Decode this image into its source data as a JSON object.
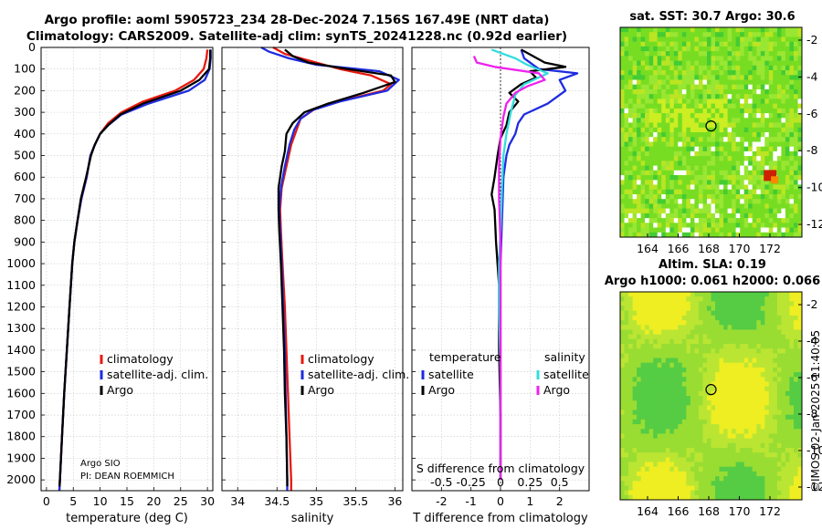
{
  "header": {
    "title_line1": "Argo profile: aoml 5905723_234 28-Dec-2024 7.156S 167.49E (NRT data)",
    "title_line2": "Climatology: CARS2009. Satellite-adj clim: synTS_20241228.nc (0.92d earlier)"
  },
  "colors": {
    "climatology": "#e8180f",
    "satellite_adj": "#1f2be0",
    "argo": "#000000",
    "salinity_satellite": "#33dddd",
    "salinity_argo": "#ee22ee"
  },
  "chart_data": [
    {
      "type": "line",
      "panel": "temperature",
      "xlabel": "temperature (deg C)",
      "ylabel": "",
      "xlim": [
        -1,
        31
      ],
      "ylim": [
        2050,
        0
      ],
      "xticks": [
        0,
        5,
        10,
        15,
        20,
        25,
        30
      ],
      "yticks": [
        0,
        100,
        200,
        300,
        400,
        500,
        600,
        700,
        800,
        900,
        1000,
        1100,
        1200,
        1300,
        1400,
        1500,
        1600,
        1700,
        1800,
        1900,
        2000
      ],
      "legend": [
        "climatology",
        "satellite-adj. clim.",
        "Argo"
      ],
      "legend_position": "lower-right",
      "annotations": [
        "Argo SIO",
        "PI: DEAN ROEMMICH"
      ],
      "series": [
        {
          "name": "climatology",
          "points": [
            [
              30,
              10
            ],
            [
              29.8,
              50
            ],
            [
              29.3,
              100
            ],
            [
              27.5,
              150
            ],
            [
              24,
              200
            ],
            [
              18,
              250
            ],
            [
              14,
              300
            ],
            [
              11.5,
              350
            ],
            [
              10,
              400
            ],
            [
              9,
              450
            ],
            [
              8.2,
              500
            ],
            [
              7.5,
              600
            ],
            [
              6.5,
              700
            ],
            [
              5.8,
              800
            ],
            [
              5.2,
              900
            ],
            [
              4.8,
              1000
            ],
            [
              4.3,
              1200
            ],
            [
              3.8,
              1400
            ],
            [
              3.3,
              1600
            ],
            [
              2.9,
              1800
            ],
            [
              2.5,
              2000
            ],
            [
              2.4,
              2050
            ]
          ]
        },
        {
          "name": "satellite-adj. clim.",
          "points": [
            [
              30.6,
              10
            ],
            [
              30.6,
              50
            ],
            [
              30.4,
              100
            ],
            [
              29.5,
              150
            ],
            [
              26.5,
              200
            ],
            [
              19,
              260
            ],
            [
              14,
              310
            ],
            [
              11.5,
              360
            ],
            [
              10,
              400
            ],
            [
              9,
              450
            ],
            [
              8.2,
              500
            ],
            [
              7.5,
              600
            ],
            [
              6.5,
              700
            ],
            [
              5.8,
              800
            ],
            [
              5.2,
              900
            ],
            [
              4.8,
              1000
            ],
            [
              4.3,
              1200
            ],
            [
              3.8,
              1400
            ],
            [
              3.3,
              1600
            ],
            [
              2.9,
              1800
            ],
            [
              2.5,
              2000
            ],
            [
              2.4,
              2050
            ]
          ]
        },
        {
          "name": "Argo",
          "points": [
            [
              30.5,
              10
            ],
            [
              30.5,
              50
            ],
            [
              30.3,
              100
            ],
            [
              28.5,
              150
            ],
            [
              25,
              200
            ],
            [
              18,
              260
            ],
            [
              13.8,
              310
            ],
            [
              11.5,
              360
            ],
            [
              10,
              400
            ],
            [
              9,
              450
            ],
            [
              8.3,
              500
            ],
            [
              7.4,
              600
            ],
            [
              6.4,
              700
            ],
            [
              5.8,
              800
            ],
            [
              5.2,
              900
            ],
            [
              4.8,
              1000
            ],
            [
              4.3,
              1200
            ],
            [
              3.8,
              1400
            ],
            [
              3.3,
              1600
            ],
            [
              2.9,
              1800
            ],
            [
              2.5,
              2000
            ],
            [
              2.45,
              2030
            ]
          ]
        }
      ]
    },
    {
      "type": "line",
      "panel": "salinity",
      "xlabel": "salinity",
      "ylabel": "",
      "xlim": [
        33.8,
        36.1
      ],
      "ylim": [
        2050,
        0
      ],
      "xticks": [
        34,
        34.5,
        35,
        35.5,
        36
      ],
      "legend": [
        "climatology",
        "satellite-adj. clim.",
        "Argo"
      ],
      "legend_position": "lower-right",
      "series": [
        {
          "name": "climatology",
          "points": [
            [
              34.45,
              0
            ],
            [
              34.6,
              30
            ],
            [
              34.9,
              60
            ],
            [
              35.3,
              100
            ],
            [
              35.7,
              130
            ],
            [
              35.95,
              170
            ],
            [
              35.85,
              200
            ],
            [
              35.4,
              240
            ],
            [
              35.0,
              280
            ],
            [
              34.8,
              330
            ],
            [
              34.75,
              380
            ],
            [
              34.68,
              450
            ],
            [
              34.62,
              550
            ],
            [
              34.56,
              650
            ],
            [
              34.54,
              750
            ],
            [
              34.55,
              850
            ],
            [
              34.57,
              1000
            ],
            [
              34.6,
              1200
            ],
            [
              34.62,
              1400
            ],
            [
              34.64,
              1600
            ],
            [
              34.66,
              1800
            ],
            [
              34.68,
              2000
            ],
            [
              34.68,
              2050
            ]
          ]
        },
        {
          "name": "satellite-adj. clim.",
          "points": [
            [
              34.3,
              0
            ],
            [
              34.4,
              20
            ],
            [
              34.65,
              50
            ],
            [
              35.0,
              80
            ],
            [
              35.8,
              110
            ],
            [
              36.05,
              150
            ],
            [
              35.9,
              200
            ],
            [
              35.3,
              250
            ],
            [
              34.95,
              290
            ],
            [
              34.8,
              330
            ],
            [
              34.72,
              380
            ],
            [
              34.66,
              450
            ],
            [
              34.6,
              550
            ],
            [
              34.55,
              650
            ],
            [
              34.53,
              750
            ],
            [
              34.54,
              850
            ],
            [
              34.56,
              1000
            ],
            [
              34.58,
              1200
            ],
            [
              34.6,
              1400
            ],
            [
              34.61,
              1600
            ],
            [
              34.62,
              1800
            ],
            [
              34.63,
              2000
            ],
            [
              34.63,
              2050
            ]
          ]
        },
        {
          "name": "Argo",
          "points": [
            [
              34.6,
              10
            ],
            [
              34.7,
              40
            ],
            [
              34.9,
              70
            ],
            [
              35.4,
              100
            ],
            [
              35.95,
              130
            ],
            [
              36.0,
              160
            ],
            [
              35.6,
              210
            ],
            [
              35.15,
              260
            ],
            [
              34.85,
              300
            ],
            [
              34.7,
              350
            ],
            [
              34.62,
              400
            ],
            [
              34.6,
              480
            ],
            [
              34.56,
              550
            ],
            [
              34.52,
              650
            ],
            [
              34.52,
              750
            ],
            [
              34.53,
              850
            ],
            [
              34.55,
              1000
            ],
            [
              34.57,
              1200
            ],
            [
              34.59,
              1400
            ],
            [
              34.6,
              1600
            ],
            [
              34.62,
              1800
            ],
            [
              34.63,
              2000
            ],
            [
              34.63,
              2030
            ]
          ]
        }
      ]
    },
    {
      "type": "line",
      "panel": "differences",
      "xlabel": "T difference from climatology",
      "xlabel_top": "S difference from climatology",
      "xlim": [
        -3,
        3
      ],
      "ylim": [
        2050,
        0
      ],
      "xticks": [
        -2,
        -1,
        0,
        1,
        2
      ],
      "xticks_salinity_labels": [
        "-0.5",
        "-0.25",
        "0",
        "0.25",
        "0.5"
      ],
      "legend": [
        "temperature",
        "satellite",
        "Argo",
        "salinity",
        "satellite",
        "Argo"
      ],
      "legend_position": "lower-center",
      "series": [
        {
          "name": "temperature satellite",
          "points": [
            [
              0.7,
              10
            ],
            [
              0.8,
              50
            ],
            [
              1.3,
              100
            ],
            [
              2.6,
              120
            ],
            [
              2.0,
              150
            ],
            [
              2.2,
              200
            ],
            [
              1.6,
              260
            ],
            [
              0.8,
              310
            ],
            [
              0.6,
              350
            ],
            [
              0.5,
              400
            ],
            [
              0.3,
              450
            ],
            [
              0.2,
              500
            ],
            [
              0.1,
              600
            ],
            [
              0.05,
              800
            ],
            [
              0,
              1000
            ],
            [
              0,
              1500
            ],
            [
              0,
              2000
            ]
          ]
        },
        {
          "name": "temperature Argo",
          "points": [
            [
              0.7,
              10
            ],
            [
              1.5,
              70
            ],
            [
              2.2,
              90
            ],
            [
              1.0,
              110
            ],
            [
              1.2,
              140
            ],
            [
              0.7,
              170
            ],
            [
              0.3,
              210
            ],
            [
              0.6,
              250
            ],
            [
              0.3,
              300
            ],
            [
              0.2,
              360
            ],
            [
              0,
              420
            ],
            [
              -0.1,
              500
            ],
            [
              -0.2,
              600
            ],
            [
              -0.3,
              680
            ],
            [
              -0.2,
              750
            ],
            [
              -0.15,
              900
            ],
            [
              -0.05,
              1100
            ],
            [
              -0.05,
              1400
            ],
            [
              0,
              1700
            ],
            [
              0,
              2000
            ]
          ]
        },
        {
          "name": "salinity satellite",
          "points": [
            [
              -0.3,
              10
            ],
            [
              0.5,
              50
            ],
            [
              0.9,
              80
            ],
            [
              1.6,
              120
            ],
            [
              0.8,
              170
            ],
            [
              0.5,
              220
            ],
            [
              0.35,
              300
            ],
            [
              0.2,
              400
            ],
            [
              0.1,
              500
            ],
            [
              0.05,
              650
            ],
            [
              0,
              850
            ],
            [
              -0.05,
              1000
            ],
            [
              -0.05,
              1200
            ],
            [
              0,
              1500
            ],
            [
              0,
              1800
            ],
            [
              0,
              2000
            ]
          ]
        },
        {
          "name": "salinity Argo",
          "points": [
            [
              -0.9,
              40
            ],
            [
              -0.8,
              70
            ],
            [
              -0.2,
              90
            ],
            [
              1.3,
              120
            ],
            [
              1.5,
              150
            ],
            [
              0.9,
              180
            ],
            [
              0.5,
              210
            ],
            [
              0.2,
              260
            ],
            [
              0.1,
              320
            ],
            [
              0,
              420
            ],
            [
              -0.05,
              550
            ],
            [
              -0.05,
              700
            ],
            [
              0,
              900
            ],
            [
              0,
              1100
            ],
            [
              0,
              1400
            ],
            [
              0,
              1700
            ],
            [
              0,
              2000
            ]
          ]
        }
      ]
    }
  ],
  "maps": {
    "sst": {
      "title": "sat. SST: 30.7 Argo: 30.6",
      "x_ticks": [
        "164",
        "166",
        "168",
        "170",
        "172"
      ],
      "y_ticks": [
        "-2",
        "-4",
        "-6",
        "-8",
        "-10",
        "-12"
      ]
    },
    "sla": {
      "title_line1": "Altim. SLA: 0.19",
      "title_line2": "Argo h1000: 0.061 h2000: 0.066",
      "x_ticks": [
        "164",
        "166",
        "168",
        "170",
        "172"
      ],
      "y_ticks": [
        "-2",
        "-4",
        "-6",
        "-8",
        "-10",
        "-12"
      ]
    }
  },
  "credit": "©IMOS 02-Jan-2025 11:40:05"
}
